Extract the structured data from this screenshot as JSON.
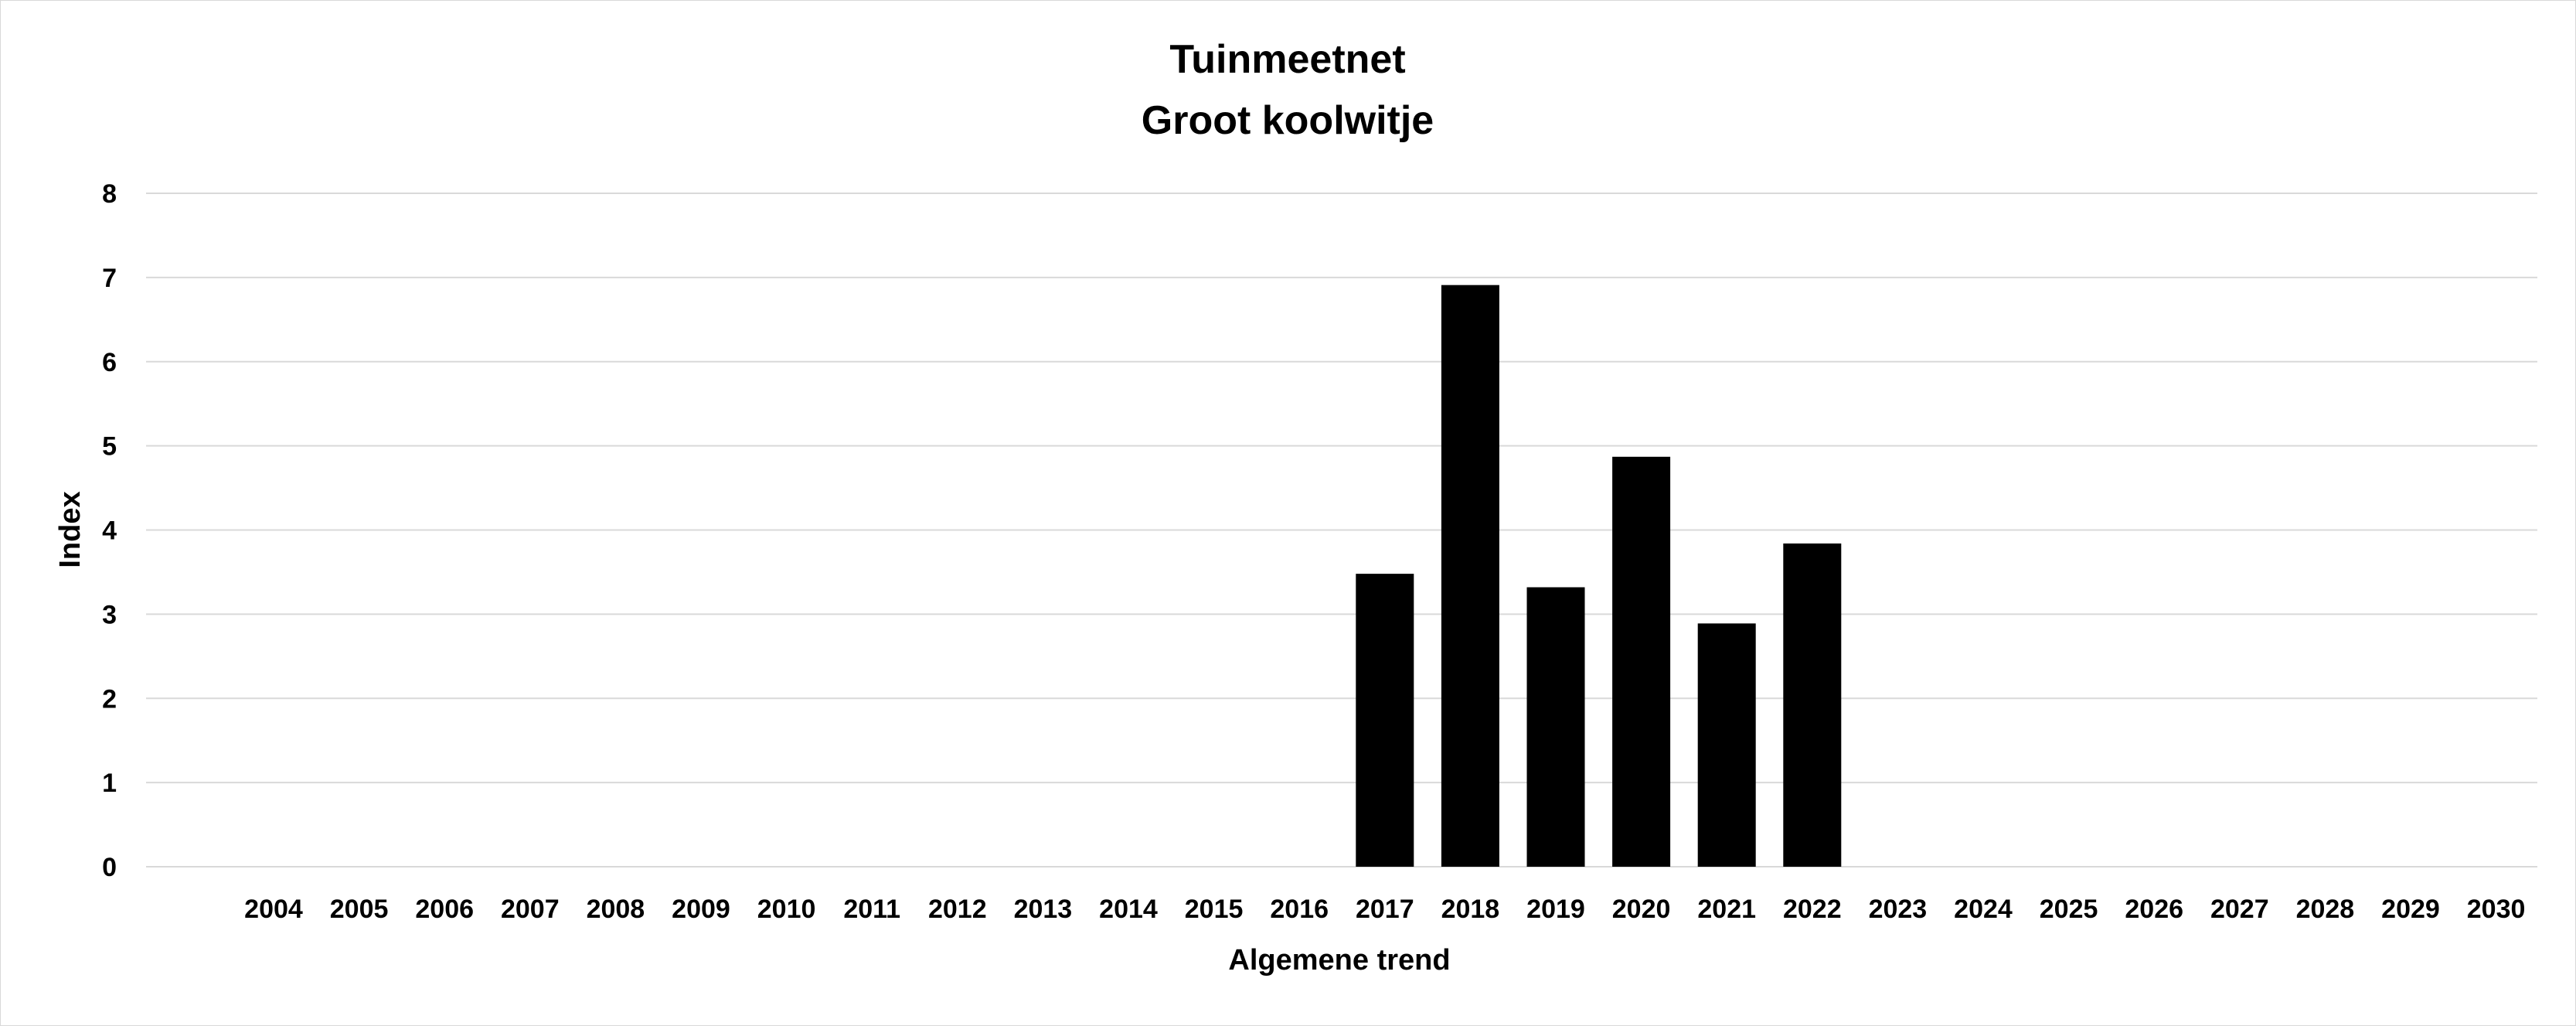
{
  "chart_data": {
    "type": "bar",
    "title": "Tuinmeetnet",
    "subtitle": "Groot koolwitje",
    "xlabel": "Algemene trend",
    "ylabel": "Index",
    "ylim": [
      0,
      8
    ],
    "yticks": [
      "0",
      "1",
      "2",
      "3",
      "4",
      "5",
      "6",
      "7",
      "8"
    ],
    "grid": true,
    "legend": "none",
    "categories": [
      "2004",
      "2005",
      "2006",
      "2007",
      "2008",
      "2009",
      "2010",
      "2011",
      "2012",
      "2013",
      "2014",
      "2015",
      "2016",
      "2017",
      "2018",
      "2019",
      "2020",
      "2021",
      "2022",
      "2023",
      "2024",
      "2025",
      "2026",
      "2027",
      "2028",
      "2029",
      "2030"
    ],
    "values": [
      null,
      null,
      null,
      null,
      null,
      null,
      null,
      null,
      null,
      null,
      null,
      null,
      null,
      3.48,
      6.91,
      3.32,
      4.87,
      2.89,
      3.84,
      null,
      null,
      null,
      null,
      null,
      null,
      null,
      null
    ],
    "colors": {
      "bar": "#000000",
      "grid": "#d9d9d9"
    }
  }
}
